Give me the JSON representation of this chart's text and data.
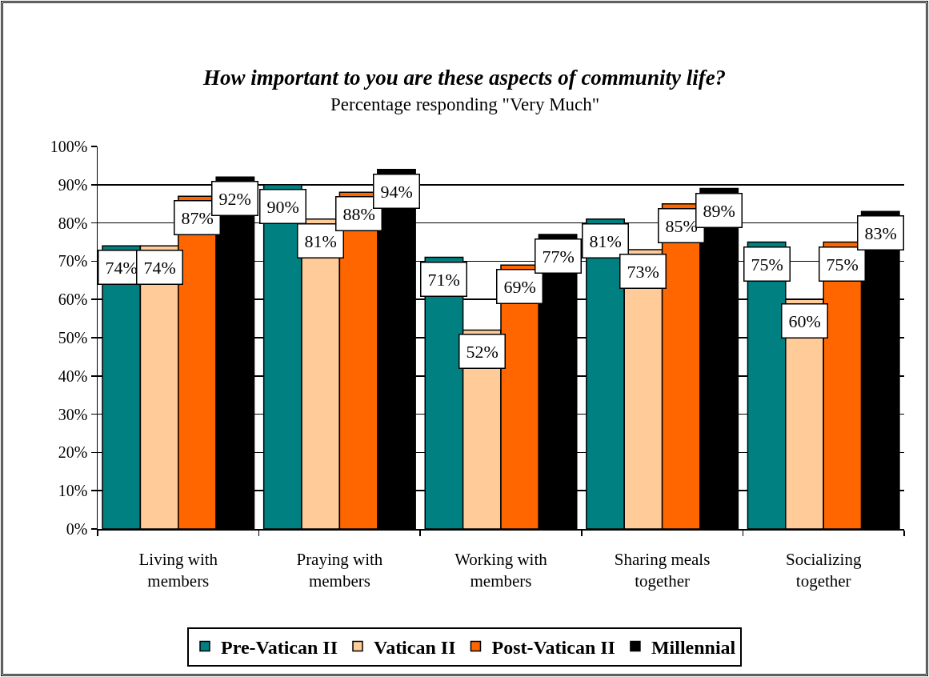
{
  "chart_data": {
    "type": "bar",
    "title": "How important to you are these aspects of community life?",
    "subtitle": "Percentage responding \"Very Much\"",
    "categories": [
      "Living with members",
      "Praying with members",
      "Working with members",
      "Sharing meals together",
      "Socializing together"
    ],
    "series": [
      {
        "name": "Pre-Vatican II",
        "color": "#008080",
        "values": [
          74,
          90,
          71,
          81,
          75
        ],
        "value_labels": [
          "74%",
          "90%",
          "71%",
          "81%",
          "75%"
        ]
      },
      {
        "name": "Vatican II",
        "color": "#ffcc99",
        "values": [
          74,
          81,
          52,
          73,
          60
        ],
        "value_labels": [
          "74%",
          "81%",
          "52%",
          "73%",
          "60%"
        ]
      },
      {
        "name": "Post-Vatican II",
        "color": "#ff6600",
        "values": [
          87,
          88,
          69,
          85,
          75
        ],
        "value_labels": [
          "87%",
          "88%",
          "69%",
          "85%",
          "75%"
        ]
      },
      {
        "name": "Millennial",
        "color": "#000000",
        "values": [
          92,
          94,
          77,
          89,
          83
        ],
        "value_labels": [
          "92%",
          "94%",
          "77%",
          "89%",
          "83%"
        ]
      }
    ],
    "ylim": [
      0,
      100
    ],
    "yticks": [
      {
        "value": 0,
        "label": "0%"
      },
      {
        "value": 10,
        "label": "10%"
      },
      {
        "value": 20,
        "label": "20%"
      },
      {
        "value": 30,
        "label": "30%"
      },
      {
        "value": 40,
        "label": "40%"
      },
      {
        "value": 50,
        "label": "50%"
      },
      {
        "value": 60,
        "label": "60%"
      },
      {
        "value": 70,
        "label": "70%"
      },
      {
        "value": 80,
        "label": "80%"
      },
      {
        "value": 90,
        "label": "90%"
      },
      {
        "value": 100,
        "label": "100%"
      }
    ],
    "grid": "y",
    "legend": "bottom"
  }
}
